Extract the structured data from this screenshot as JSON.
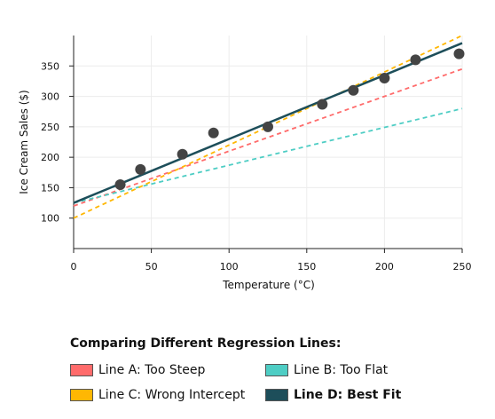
{
  "chart_data": {
    "type": "scatter",
    "title": "",
    "xlabel": "Temperature (°C)",
    "ylabel": "Ice Cream Sales ($)",
    "xlim": [
      0,
      250
    ],
    "ylim": [
      50,
      400
    ],
    "x_ticks": [
      0,
      50,
      100,
      150,
      200,
      250
    ],
    "y_ticks": [
      100,
      150,
      200,
      250,
      300,
      350
    ],
    "grid": true,
    "points": [
      {
        "x": 30,
        "y": 155
      },
      {
        "x": 43,
        "y": 180
      },
      {
        "x": 70,
        "y": 205
      },
      {
        "x": 90,
        "y": 240
      },
      {
        "x": 125,
        "y": 250
      },
      {
        "x": 160,
        "y": 287
      },
      {
        "x": 180,
        "y": 310
      },
      {
        "x": 200,
        "y": 330
      },
      {
        "x": 220,
        "y": 360
      },
      {
        "x": 248,
        "y": 370
      }
    ],
    "series": [
      {
        "name": "Line A: Too Steep",
        "color": "#ff6b6b",
        "style": "dashed",
        "intercept": 120,
        "slope": 0.9
      },
      {
        "name": "Line B: Too Flat",
        "color": "#4ecdc4",
        "style": "dashed",
        "intercept": 125,
        "slope": 0.62
      },
      {
        "name": "Line C: Wrong Intercept",
        "color": "#ffb703",
        "style": "dashed",
        "intercept": 100,
        "slope": 1.2
      },
      {
        "name": "Line D: Best Fit",
        "color": "#1d4e5a",
        "style": "solid",
        "intercept": 125,
        "slope": 1.05
      }
    ],
    "point_color": "#444444",
    "legend_title": "Comparing Different Regression Lines:",
    "legend_position": "bottom"
  }
}
